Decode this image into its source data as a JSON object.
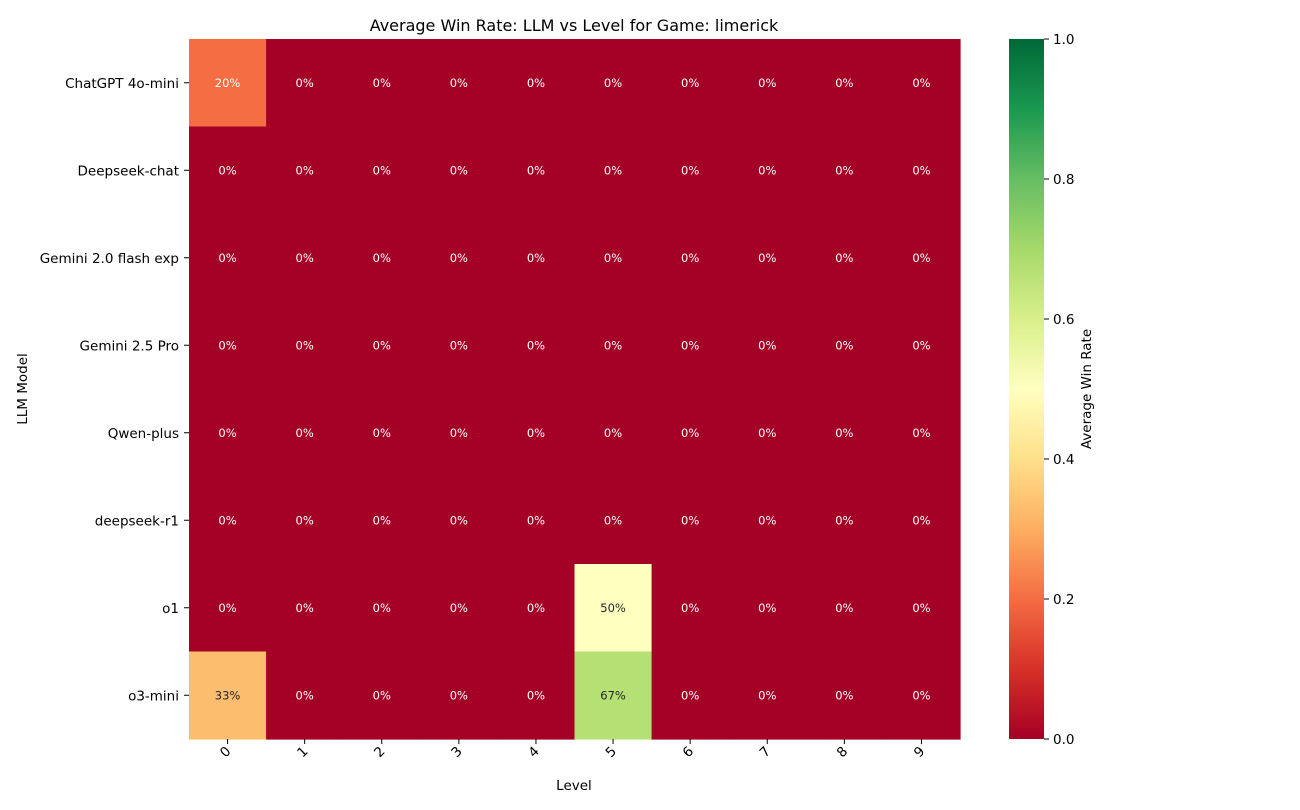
{
  "chart_data": {
    "type": "heatmap",
    "title": "Average Win Rate: LLM vs Level for Game: limerick",
    "xlabel": "Level",
    "ylabel": "LLM Model",
    "x_categories": [
      "0",
      "1",
      "2",
      "3",
      "4",
      "5",
      "6",
      "7",
      "8",
      "9"
    ],
    "y_categories": [
      "ChatGPT 4o-mini",
      "Deepseek-chat",
      "Gemini 2.0 flash exp",
      "Gemini 2.5 Pro",
      "Qwen-plus",
      "deepseek-r1",
      "o1",
      "o3-mini"
    ],
    "values": [
      [
        0.2,
        0,
        0,
        0,
        0,
        0,
        0,
        0,
        0,
        0
      ],
      [
        0,
        0,
        0,
        0,
        0,
        0,
        0,
        0,
        0,
        0
      ],
      [
        0,
        0,
        0,
        0,
        0,
        0,
        0,
        0,
        0,
        0
      ],
      [
        0,
        0,
        0,
        0,
        0,
        0,
        0,
        0,
        0,
        0
      ],
      [
        0,
        0,
        0,
        0,
        0,
        0,
        0,
        0,
        0,
        0
      ],
      [
        0,
        0,
        0,
        0,
        0,
        0,
        0,
        0,
        0,
        0
      ],
      [
        0,
        0,
        0,
        0,
        0,
        0.5,
        0,
        0,
        0,
        0
      ],
      [
        0.33,
        0,
        0,
        0,
        0,
        0.67,
        0,
        0,
        0,
        0
      ]
    ],
    "annotation_format": "percent",
    "colormap": "RdYlGn",
    "colorbar": {
      "label": "Average Win Rate",
      "range": [
        0.0,
        1.0
      ],
      "ticks": [
        "0.0",
        "0.2",
        "0.4",
        "0.6",
        "0.8",
        "1.0"
      ]
    }
  }
}
